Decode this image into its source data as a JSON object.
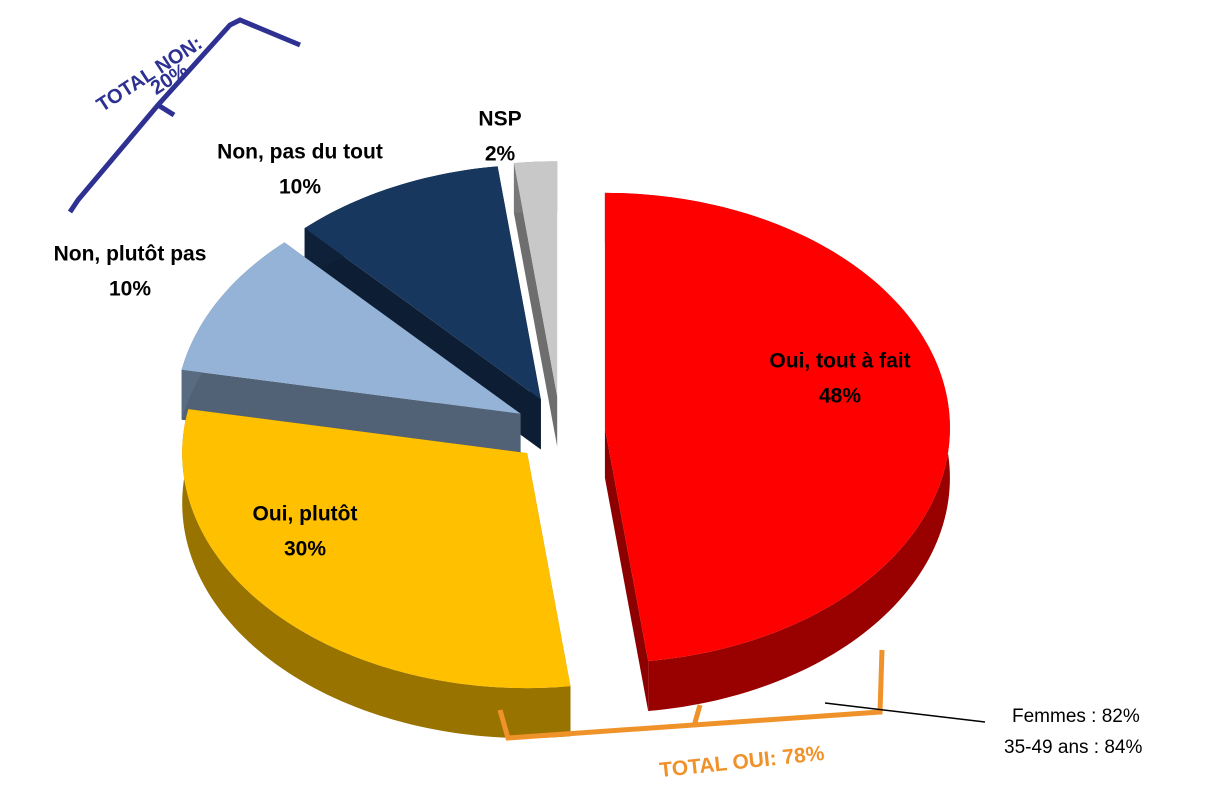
{
  "chart_data": {
    "type": "pie3d",
    "categories": [
      "Oui, tout à fait",
      "Oui, plutôt",
      "Non, plutôt pas",
      "Non, pas du tout",
      "NSP"
    ],
    "values": [
      48,
      30,
      10,
      10,
      2
    ],
    "value_labels": [
      "48%",
      "30%",
      "10%",
      "10%",
      "2%"
    ],
    "colors": [
      "#ff0000",
      "#ffc000",
      "#95b3d7",
      "#17375e",
      "#c8c8c8"
    ],
    "annotations": [
      "TOTAL NON:",
      "20%",
      "TOTAL OUI: 78%",
      "Femmes : 82%",
      "35-49 ans : 84%"
    ]
  }
}
